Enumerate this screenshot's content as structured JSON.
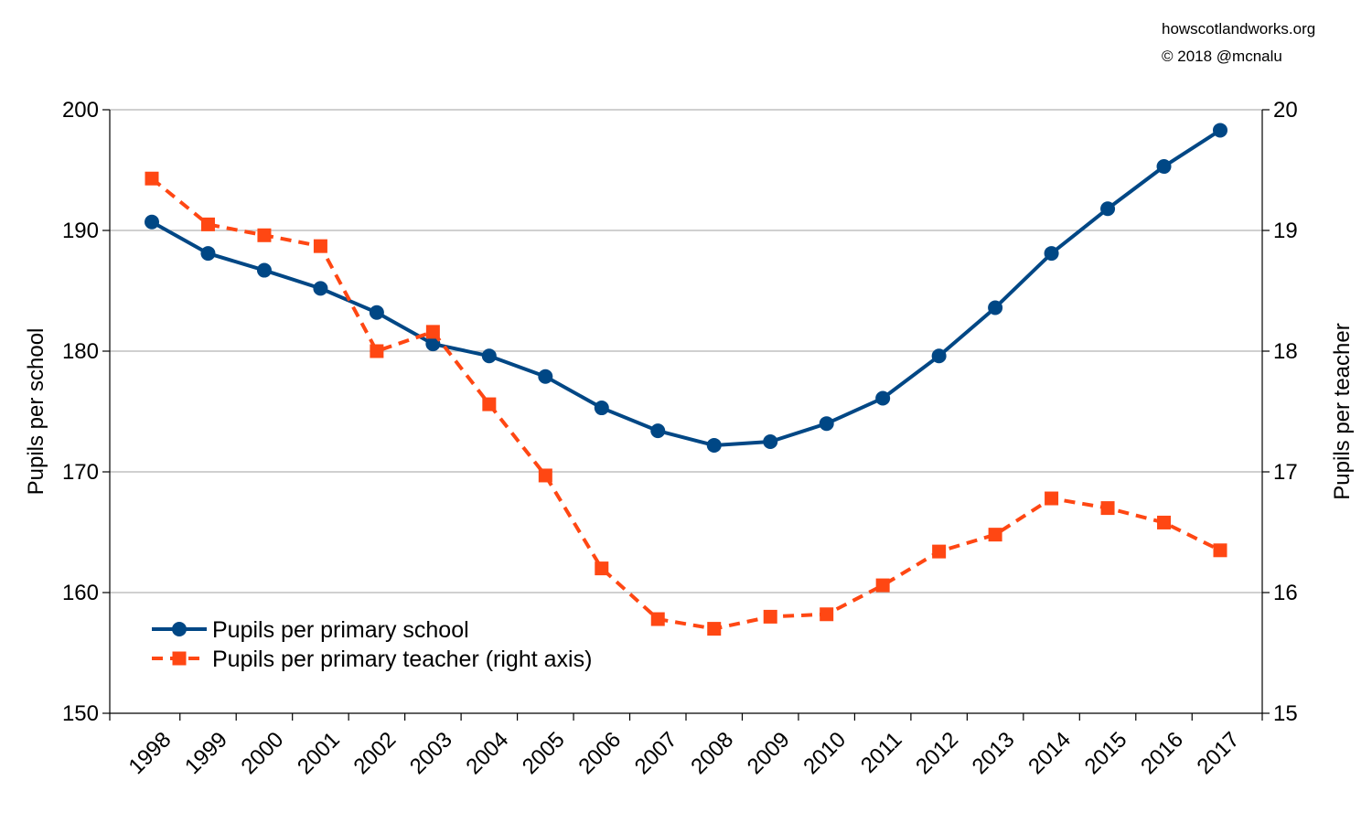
{
  "credits": {
    "line1": "howscotlandworks.org",
    "line2": "© 2018  @mcnalu"
  },
  "chart_data": {
    "type": "line",
    "categories": [
      "1998",
      "1999",
      "2000",
      "2001",
      "2002",
      "2003",
      "2004",
      "2005",
      "2006",
      "2007",
      "2008",
      "2009",
      "2010",
      "2011",
      "2012",
      "2013",
      "2014",
      "2015",
      "2016",
      "2017"
    ],
    "ylabel": "Pupils per school",
    "y2label": "Pupils per teacher",
    "ylim": [
      150,
      200
    ],
    "y2lim": [
      15,
      20
    ],
    "yticks": [
      150,
      160,
      170,
      180,
      190,
      200
    ],
    "y2ticks": [
      15,
      16,
      17,
      18,
      19,
      20
    ],
    "grid": true,
    "legend_position": "bottom-left",
    "series": [
      {
        "name": "Pupils per primary school",
        "axis": "left",
        "color": "#004785",
        "marker": "circle",
        "dash": "solid",
        "values": [
          190.7,
          188.1,
          186.7,
          185.2,
          183.2,
          180.6,
          179.6,
          177.9,
          175.3,
          173.4,
          172.2,
          172.5,
          174.0,
          176.1,
          179.6,
          183.6,
          188.1,
          191.8,
          195.3,
          198.3
        ]
      },
      {
        "name": "Pupils per primary teacher (right axis)",
        "axis": "right",
        "color": "#ff4713",
        "marker": "square",
        "dash": "dashed",
        "values": [
          19.43,
          19.05,
          18.96,
          18.87,
          18.0,
          18.16,
          17.56,
          16.97,
          16.2,
          15.78,
          15.7,
          15.8,
          15.82,
          16.06,
          16.34,
          16.48,
          16.78,
          16.7,
          16.58,
          16.35
        ]
      }
    ]
  }
}
